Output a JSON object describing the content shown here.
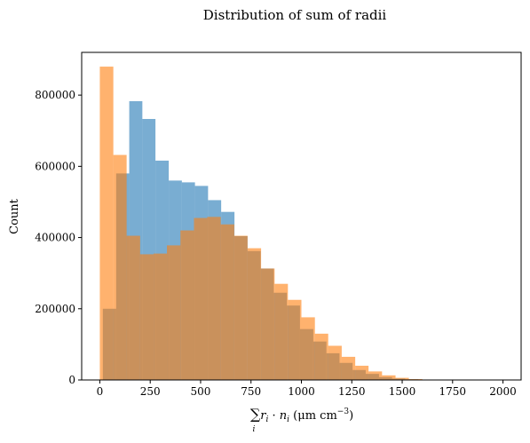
{
  "chart_data": {
    "type": "histogram",
    "title": "Distribution of sum of radii",
    "ylabel": "Count",
    "xlabel": {
      "sum": "∑",
      "index": "i",
      "term_main": "r",
      "term_sub": "i",
      "dot": " · ",
      "term2_main": "n",
      "term2_sub": "i",
      "units": " (μm cm",
      "units_exp": "−3",
      "units_close": ")"
    },
    "xlim": [
      -90,
      2090
    ],
    "ylim": [
      0,
      920000
    ],
    "x_ticks": [
      {
        "value": 0,
        "label": "0"
      },
      {
        "value": 250,
        "label": "250"
      },
      {
        "value": 500,
        "label": "500"
      },
      {
        "value": 750,
        "label": "750"
      },
      {
        "value": 1000,
        "label": "1000"
      },
      {
        "value": 1250,
        "label": "1250"
      },
      {
        "value": 1500,
        "label": "1500"
      },
      {
        "value": 1750,
        "label": "1750"
      },
      {
        "value": 2000,
        "label": "2000"
      }
    ],
    "y_ticks": [
      {
        "value": 0,
        "label": "0"
      },
      {
        "value": 200000,
        "label": "200000"
      },
      {
        "value": 400000,
        "label": "400000"
      },
      {
        "value": 600000,
        "label": "600000"
      },
      {
        "value": 800000,
        "label": "800000"
      }
    ],
    "grid": false,
    "series": [
      {
        "color": "#1f77b4",
        "opacity": 0.6,
        "bin_edges": [
          15,
          81,
          146,
          211,
          276,
          342,
          407,
          472,
          537,
          602,
          668,
          733,
          798,
          863,
          928,
          993,
          1059,
          1124,
          1189,
          1254,
          1319,
          1385,
          1450,
          1515,
          1580,
          1646,
          1711,
          1776,
          1841,
          1906,
          1972
        ],
        "counts": [
          200000,
          580000,
          783000,
          733000,
          616000,
          560000,
          555000,
          545000,
          505000,
          472000,
          404000,
          362000,
          313000,
          245000,
          209000,
          143000,
          108000,
          75000,
          48000,
          28000,
          17000,
          8000,
          4000,
          2000,
          1000,
          500,
          0,
          0,
          0,
          0
        ]
      },
      {
        "color": "#ff7f0e",
        "opacity": 0.6,
        "bin_edges": [
          0,
          67,
          133,
          200,
          267,
          333,
          400,
          467,
          533,
          600,
          667,
          733,
          800,
          867,
          933,
          1000,
          1067,
          1133,
          1200,
          1267,
          1333,
          1400,
          1467,
          1533,
          1600,
          1667,
          1733,
          1800,
          1867,
          1933,
          2000
        ],
        "counts": [
          880000,
          632000,
          405000,
          353000,
          355000,
          378000,
          420000,
          455000,
          458000,
          437000,
          405000,
          370000,
          313000,
          270000,
          225000,
          176000,
          130000,
          96000,
          65000,
          40000,
          24000,
          13000,
          6000,
          2500,
          1000,
          500,
          200,
          100,
          0,
          0
        ]
      }
    ]
  }
}
